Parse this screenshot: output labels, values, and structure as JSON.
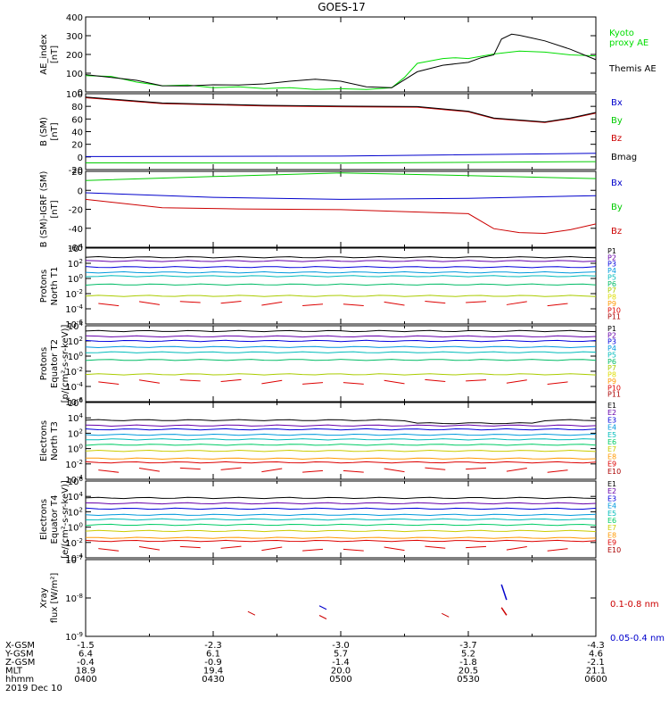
{
  "title": "GOES-17",
  "date": "2019 Dec 10",
  "chart_data": [
    {
      "type": "line",
      "ylabel": "AE_index [nT]",
      "ylim": [
        0,
        400
      ],
      "yticks": [
        "400",
        "300",
        "200",
        "100",
        "0"
      ],
      "time_hours": [
        4.0,
        4.25,
        4.5,
        4.75,
        5.0,
        5.25,
        5.5,
        5.75,
        6.0
      ],
      "series": [
        {
          "name": "Kyoto proxy AE",
          "label_lines": [
            "Kyoto",
            "proxy AE"
          ],
          "color": "#00dd00",
          "x": [
            4.0,
            4.1,
            4.2,
            4.3,
            4.4,
            4.5,
            4.6,
            4.7,
            4.8,
            4.9,
            5.0,
            5.1,
            5.2,
            5.25,
            5.3,
            5.4,
            5.45,
            5.5,
            5.6,
            5.7,
            5.8,
            5.9,
            6.0
          ],
          "y": [
            85,
            85,
            50,
            35,
            35,
            25,
            25,
            20,
            20,
            15,
            15,
            15,
            20,
            80,
            150,
            180,
            180,
            180,
            200,
            220,
            210,
            200,
            190
          ]
        },
        {
          "name": "Themis AE",
          "label_lines": [
            "Themis AE"
          ],
          "color": "#000000",
          "x": [
            4.0,
            4.1,
            4.2,
            4.3,
            4.4,
            4.5,
            4.6,
            4.7,
            4.8,
            4.9,
            5.0,
            5.1,
            5.2,
            5.3,
            5.4,
            5.5,
            5.55,
            5.6,
            5.63,
            5.67,
            5.7,
            5.75,
            5.8,
            5.9,
            6.0
          ],
          "y": [
            90,
            80,
            60,
            35,
            30,
            40,
            35,
            45,
            55,
            70,
            55,
            30,
            20,
            110,
            140,
            160,
            180,
            200,
            280,
            310,
            300,
            290,
            270,
            230,
            170
          ]
        }
      ]
    },
    {
      "type": "line",
      "ylabel": "B (SM) [nT]",
      "ylim": [
        -20,
        100
      ],
      "yticks": [
        "100",
        "80",
        "60",
        "40",
        "20",
        "0",
        "-20"
      ],
      "series": [
        {
          "name": "Bx",
          "color": "#0000cc",
          "x": [
            4.0,
            5.0,
            6.0
          ],
          "y": [
            0,
            2,
            5
          ]
        },
        {
          "name": "By",
          "color": "#00cc00",
          "x": [
            4.0,
            5.0,
            6.0
          ],
          "y": [
            -10,
            -9,
            -8
          ]
        },
        {
          "name": "Bz",
          "color": "#cc0000",
          "x": [
            4.0,
            4.3,
            4.7,
            5.0,
            5.3,
            5.5,
            5.6,
            5.8,
            5.9,
            6.0
          ],
          "y": [
            93,
            85,
            80,
            80,
            78,
            72,
            60,
            55,
            60,
            70
          ]
        },
        {
          "name": "Bmag",
          "color": "#000000",
          "x": [
            4.0,
            4.3,
            4.7,
            5.0,
            5.3,
            5.5,
            5.6,
            5.8,
            5.9,
            6.0
          ],
          "y": [
            94,
            86,
            81,
            81,
            79,
            73,
            61,
            56,
            61,
            71
          ]
        }
      ]
    },
    {
      "type": "line",
      "ylabel": "B (SM)-IGRF (SM) [nT]",
      "ylim": [
        -60,
        20
      ],
      "yticks": [
        "20",
        "0",
        "-20",
        "-40",
        "-60"
      ],
      "series": [
        {
          "name": "Bx",
          "color": "#0000cc",
          "x": [
            4.0,
            4.5,
            5.0,
            5.5,
            6.0
          ],
          "y": [
            -3,
            -7,
            -10,
            -8,
            -6
          ]
        },
        {
          "name": "By",
          "color": "#00cc00",
          "x": [
            4.0,
            4.5,
            5.0,
            5.5,
            6.0
          ],
          "y": [
            10,
            15,
            18,
            16,
            12
          ]
        },
        {
          "name": "Bz",
          "color": "#cc0000",
          "x": [
            4.0,
            4.3,
            4.6,
            5.0,
            5.5,
            5.6,
            5.7,
            5.8,
            5.9,
            6.0
          ],
          "y": [
            -10,
            -18,
            -20,
            -20,
            -25,
            -40,
            -45,
            -45,
            -42,
            -35
          ]
        }
      ]
    },
    {
      "type": "line",
      "ylabel": "Protons North T1",
      "log": true,
      "ylim": [
        -6,
        4
      ],
      "yticks": [
        "10^4",
        "10^2",
        "10^0",
        "10^-2",
        "10^-4",
        "10^-6"
      ],
      "channels": [
        "P1",
        "P2",
        "P3",
        "P4",
        "P5",
        "P6",
        "P7",
        "P8",
        "P9",
        "P10",
        "P11"
      ],
      "log_levels": [
        2.8,
        2.3,
        1.5,
        0.8,
        0.3,
        -0.8,
        -2.3,
        null,
        null,
        null,
        null
      ]
    },
    {
      "type": "line",
      "ylabel": "Protons Equator T2",
      "ylabel2": "[p/(cm²-s-sr-keV)]",
      "log": true,
      "ylim": [
        -6,
        4
      ],
      "yticks": [
        "10^4",
        "10^2",
        "10^0",
        "10^-2",
        "10^-4",
        "10^-6"
      ],
      "channels": [
        "P1",
        "P2",
        "P3",
        "P4",
        "P5",
        "P6",
        "P7",
        "P8",
        "P9",
        "P10",
        "P11"
      ],
      "log_levels": [
        3.3,
        2.6,
        2.0,
        1.2,
        0.5,
        -0.5,
        -2.4,
        null,
        null,
        null,
        null
      ]
    },
    {
      "type": "line",
      "ylabel": "Electrons North T3",
      "log": true,
      "ylim": [
        -4,
        6
      ],
      "yticks": [
        "10^6",
        "10^4",
        "10^2",
        "10^0",
        "10^-2",
        "10^-4"
      ],
      "channels": [
        "E1",
        "E2",
        "E3",
        "E4",
        "E5",
        "E6",
        "E7",
        "E8",
        "E9",
        "E10"
      ],
      "log_levels": [
        3.7,
        3.0,
        2.5,
        1.8,
        1.2,
        0.5,
        -0.3,
        -1.3,
        -1.8,
        null
      ]
    },
    {
      "type": "line",
      "ylabel": "Electrons Equator T4",
      "ylabel2": "[e/(cm²-s-sr-keV)]",
      "log": true,
      "ylim": [
        -4,
        6
      ],
      "yticks": [
        "10^6",
        "10^4",
        "10^2",
        "10^0",
        "10^-2",
        "10^-4"
      ],
      "channels": [
        "E1",
        "E2",
        "E3",
        "E4",
        "E5",
        "E6",
        "E7",
        "E8",
        "E9",
        "E10"
      ],
      "log_levels": [
        3.8,
        3.1,
        2.4,
        1.6,
        1.0,
        0.3,
        -0.5,
        -1.4,
        -1.8,
        null
      ]
    },
    {
      "type": "line",
      "ylabel": "Xray flux [W/m²]",
      "log": true,
      "ylim": [
        -9,
        -7
      ],
      "yticks": [
        "10^-7",
        "10^-8",
        "10^-9"
      ],
      "series": [
        {
          "name": "0.1-0.8 nm",
          "color": "#cc0000"
        },
        {
          "name": "0.05-0.4 nm",
          "color": "#0000cc"
        }
      ]
    }
  ],
  "xaxis": {
    "tick_times": [
      "0400",
      "0430",
      "0500",
      "0530",
      "0600"
    ],
    "rows": [
      {
        "label": "X-GSM",
        "values": [
          "-1.5",
          "-2.3",
          "-3.0",
          "-3.7",
          "-4.3"
        ]
      },
      {
        "label": "Y-GSM",
        "values": [
          "6.4",
          "6.1",
          "5.7",
          "5.2",
          "4.6"
        ]
      },
      {
        "label": "Z-GSM",
        "values": [
          "-0.4",
          "-0.9",
          "-1.4",
          "-1.8",
          "-2.1"
        ]
      },
      {
        "label": "MLT",
        "values": [
          "18.9",
          "19.4",
          "20.0",
          "20.5",
          "21.1"
        ]
      },
      {
        "label": "hhmm",
        "values": [
          "0400",
          "0430",
          "0500",
          "0530",
          "0600"
        ]
      }
    ]
  },
  "colors": {
    "P": [
      "#000000",
      "#6600aa",
      "#0000dd",
      "#0099dd",
      "#00bbbb",
      "#00bb66",
      "#aacc00",
      "#dddd00",
      "#ff9900",
      "#dd0000",
      "#aa0000"
    ],
    "E": [
      "#000000",
      "#6600aa",
      "#0000dd",
      "#0099dd",
      "#00bbbb",
      "#00cc66",
      "#cccc00",
      "#ff9900",
      "#dd0000",
      "#aa0000"
    ]
  }
}
